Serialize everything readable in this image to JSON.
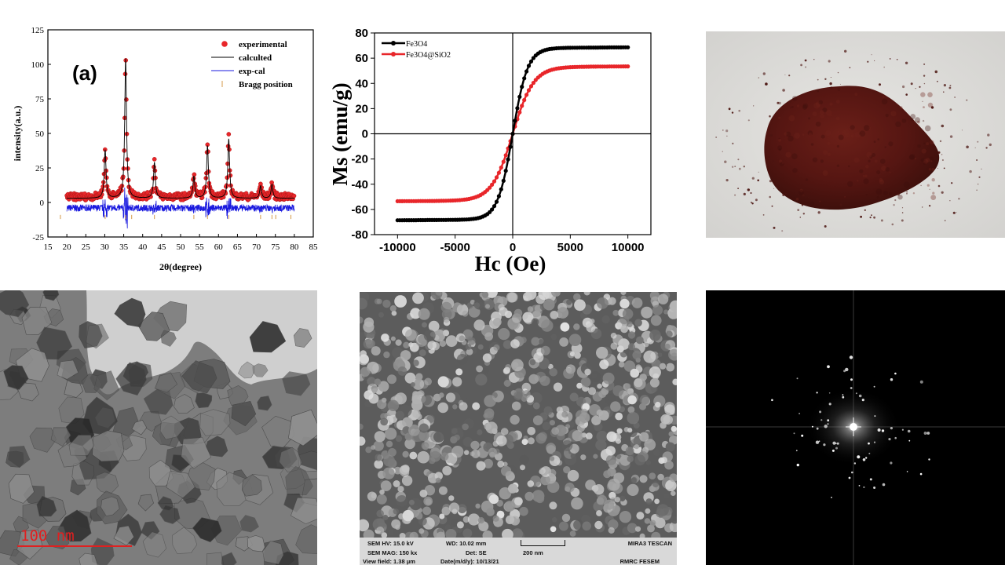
{
  "chart_data": [
    {
      "type": "scatter",
      "panel_label": "(a)",
      "xlabel": "2θ(degree)",
      "ylabel": "intensity(a.u.)",
      "xlim": [
        15,
        85
      ],
      "ylim": [
        -25,
        125
      ],
      "xticks": [
        15,
        20,
        25,
        30,
        35,
        40,
        45,
        50,
        55,
        60,
        65,
        70,
        75,
        80,
        85
      ],
      "yticks": [
        -25,
        0,
        25,
        50,
        75,
        100,
        125
      ],
      "legend_position": "top-right",
      "legend": [
        "experimental",
        "calculted",
        "exp-cal",
        "Bragg position"
      ],
      "peaks": [
        {
          "x": 30.1,
          "y": 38
        },
        {
          "x": 35.5,
          "y": 104
        },
        {
          "x": 43.1,
          "y": 29
        },
        {
          "x": 53.5,
          "y": 19
        },
        {
          "x": 57.1,
          "y": 41
        },
        {
          "x": 62.7,
          "y": 46
        },
        {
          "x": 71.1,
          "y": 12
        },
        {
          "x": 74.1,
          "y": 13
        }
      ],
      "baseline": 3,
      "bragg_positions": [
        18.3,
        30.1,
        35.5,
        37.1,
        43.1,
        53.5,
        57.1,
        62.7,
        71.1,
        74.1,
        75.1,
        79.1
      ],
      "colors": {
        "experimental": "#e8262a",
        "calculated": "#000000",
        "difference": "#1a1adf",
        "bragg": "#d49a4a"
      }
    },
    {
      "type": "line",
      "xlabel": "Hc (Oe)",
      "ylabel": "Ms (emu/g)",
      "xlim": [
        -12000,
        12000
      ],
      "ylim": [
        -80,
        80
      ],
      "xticks": [
        -10000,
        -5000,
        0,
        5000,
        10000
      ],
      "yticks": [
        -80,
        -60,
        -40,
        -20,
        0,
        20,
        40,
        60,
        80
      ],
      "legend_position": "top-left",
      "series": [
        {
          "name": "Fe3O4",
          "color": "#000000",
          "ms": 68,
          "h0": 1300
        },
        {
          "name": "Fe3O4@SiO2",
          "color": "#e8262a",
          "ms": 53,
          "h0": 1800
        }
      ]
    }
  ],
  "images": {
    "powder": {
      "icon": "powder-photo"
    },
    "tem": {
      "scale_label": "100  nm"
    },
    "sem": {
      "hv": "SEM HV: 15.0 kV",
      "wd": "WD: 10.02 mm",
      "brand": "MIRA3 TESCAN",
      "mag": "SEM MAG: 150 kx",
      "det": "Det: SE",
      "scale": "200 nm",
      "field": "View field: 1.38 μm",
      "date": "Date(m/d/y): 10/13/21",
      "lab": "RMRC FESEM"
    },
    "fft": {
      "icon": "fft-diffraction-pattern"
    }
  }
}
